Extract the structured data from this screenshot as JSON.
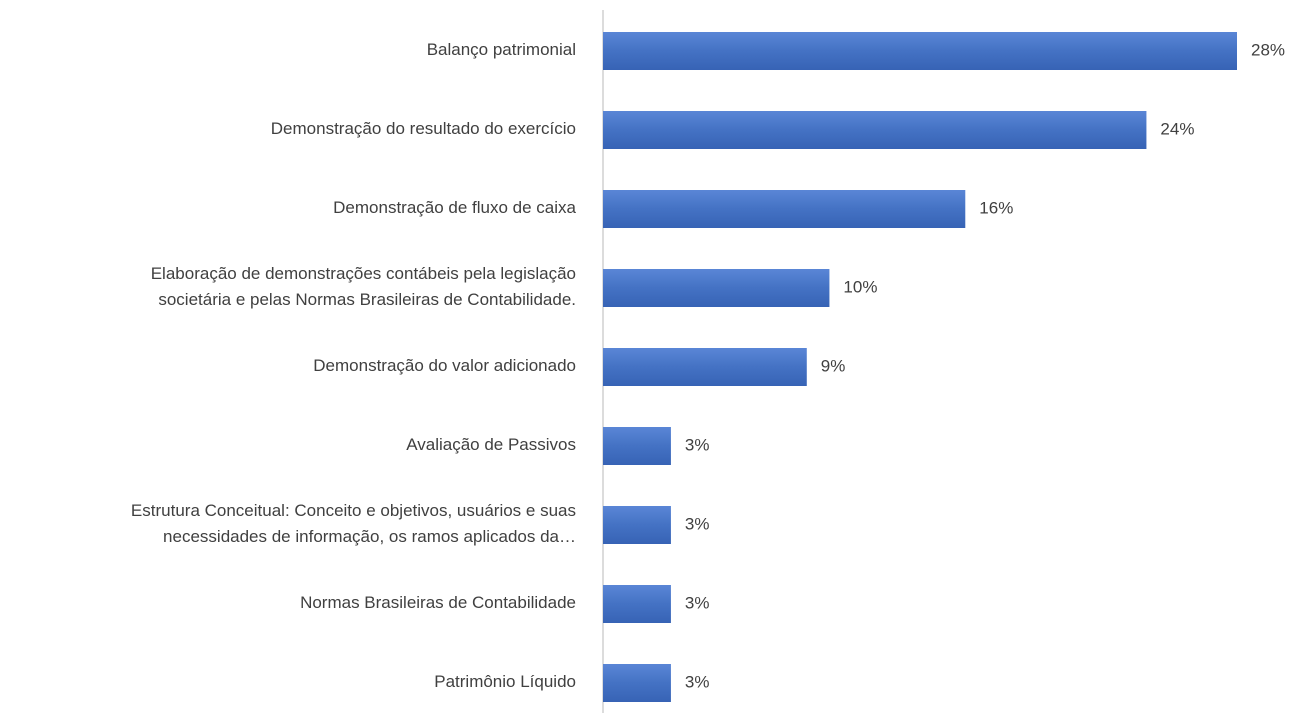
{
  "chart_data": {
    "type": "bar",
    "orientation": "horizontal",
    "categories": [
      "Balanço patrimonial",
      "Demonstração do resultado do exercício",
      "Demonstração de fluxo de caixa",
      "Elaboração de demonstrações contábeis pela legislação\nsocietária e pelas Normas Brasileiras de Contabilidade.",
      "Demonstração do valor adicionado",
      "Avaliação de Passivos",
      "Estrutura Conceitual: Conceito e objetivos, usuários e suas\nnecessidades de informação, os ramos aplicados da…",
      "Normas Brasileiras de Contabilidade",
      "Patrimônio Líquido"
    ],
    "values": [
      28,
      24,
      16,
      10,
      9,
      3,
      3,
      3,
      3
    ],
    "value_labels": [
      "28%",
      "24%",
      "16%",
      "10%",
      "9%",
      "3%",
      "3%",
      "3%",
      "3%"
    ],
    "color": "#4472c4"
  }
}
